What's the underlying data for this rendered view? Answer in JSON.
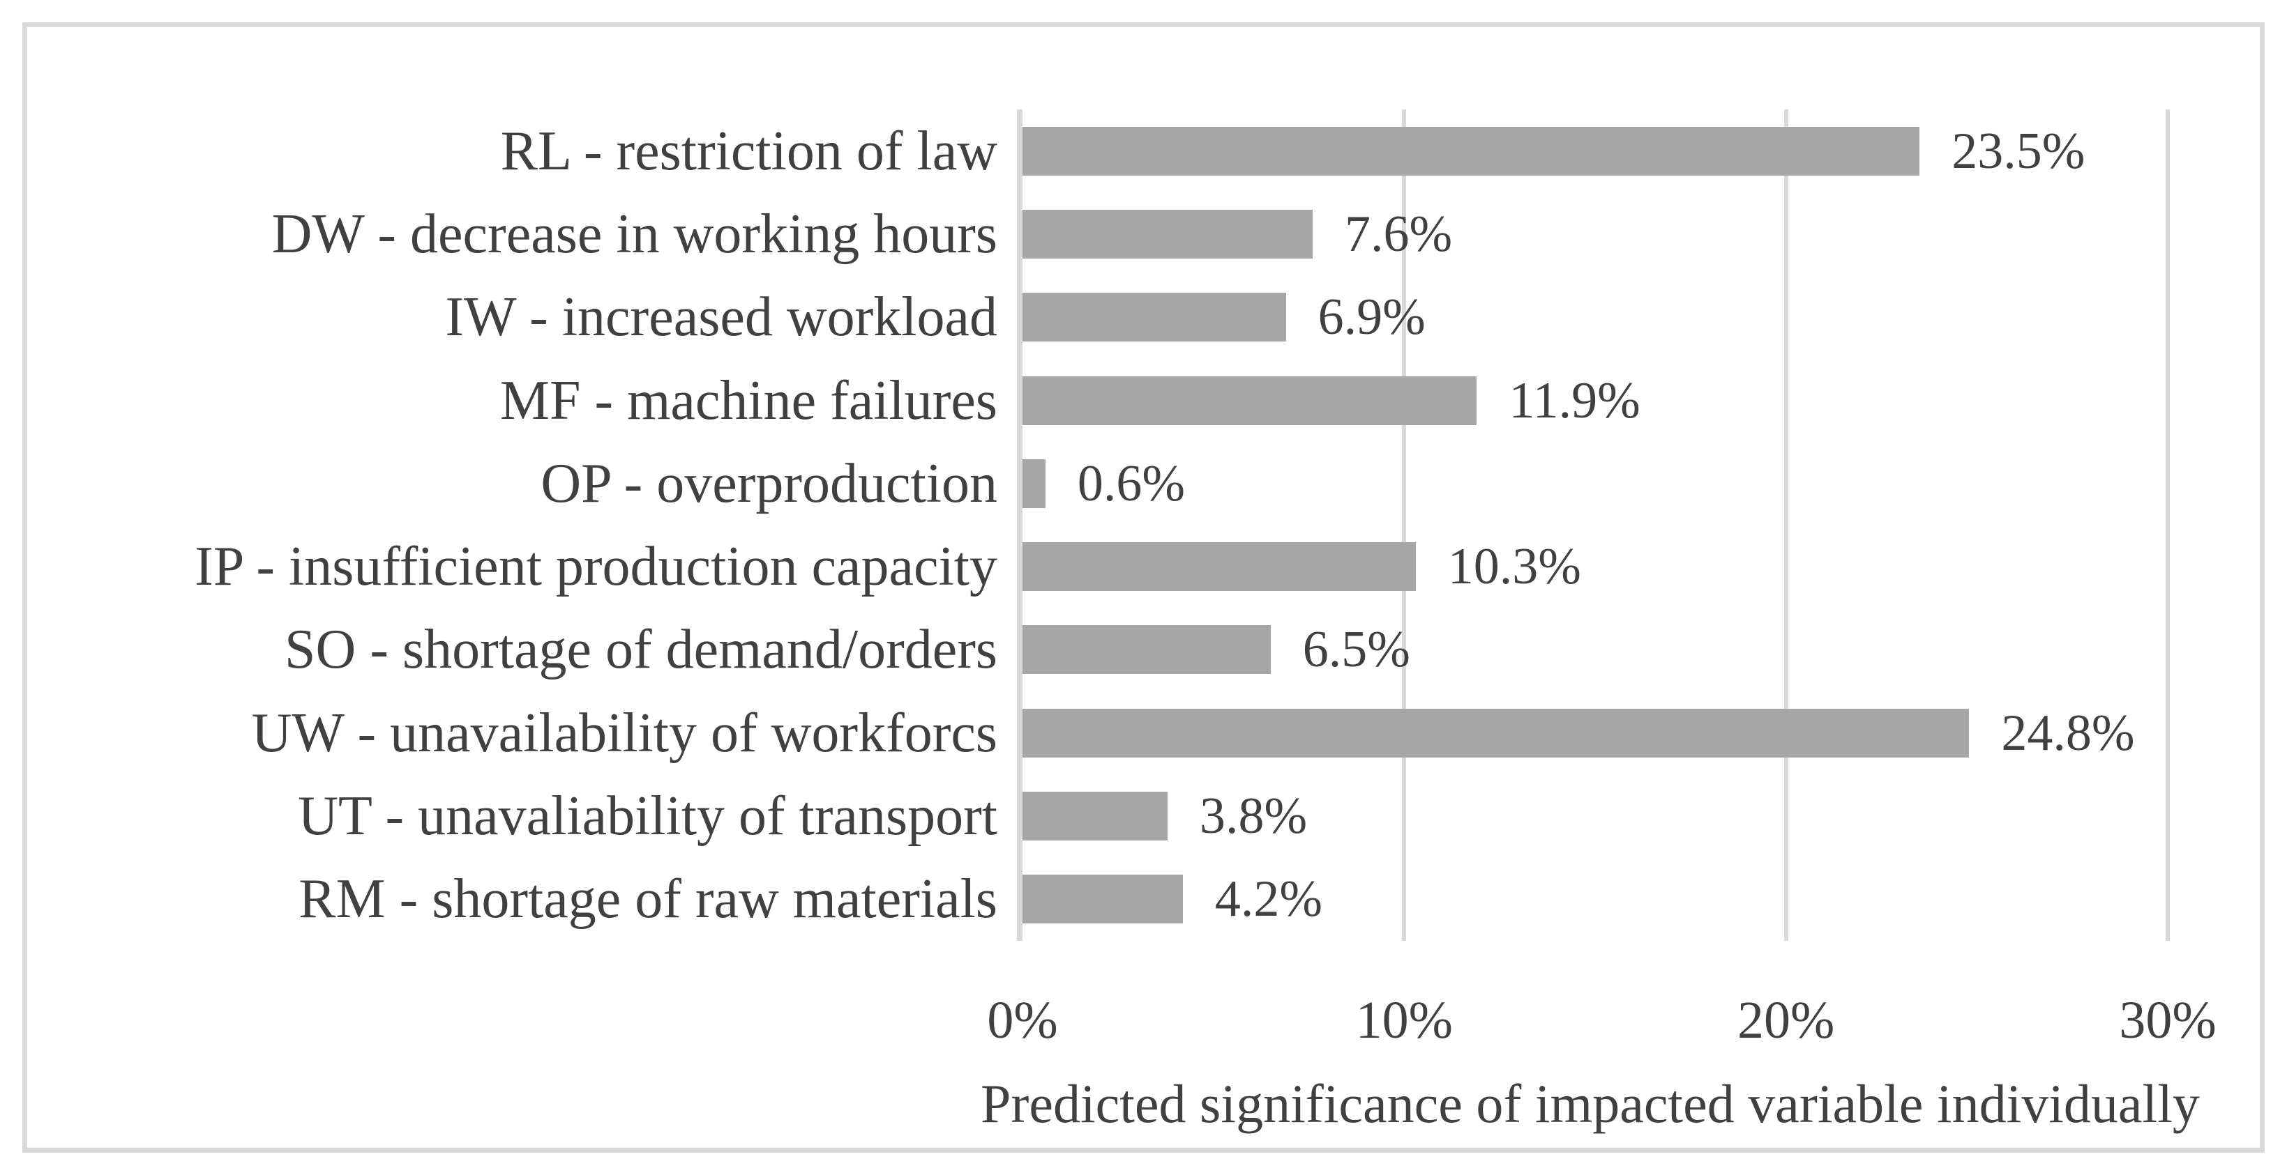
{
  "figure": {
    "background": "#ffffff",
    "border_color": "#d9d9d9",
    "text_color": "#404040"
  },
  "chart_data": {
    "type": "bar",
    "orientation": "horizontal",
    "title": "",
    "xlabel": "Predicted significance of impacted variable individually",
    "ylabel": "",
    "categories": [
      "RL - restriction of law",
      "DW - decrease in working hours",
      "IW - increased workload",
      "MF - machine failures",
      "OP - overproduction",
      "IP - insufficient production capacity",
      "SO - shortage of demand/orders",
      "UW - unavailability of workforcs",
      "UT - unavaliability of transport",
      "RM - shortage of raw materials"
    ],
    "values": [
      23.5,
      7.6,
      6.9,
      11.9,
      0.6,
      10.3,
      6.5,
      24.8,
      3.8,
      4.2
    ],
    "value_labels": [
      "23.5%",
      "7.6%",
      "6.9%",
      "11.9%",
      "0.6%",
      "10.3%",
      "6.5%",
      "24.8%",
      "3.8%",
      "4.2%"
    ],
    "x_ticks": [
      "0%",
      "10%",
      "20%",
      "30%"
    ],
    "x_tick_values": [
      0,
      10,
      20,
      30
    ],
    "xlim": [
      0,
      30
    ],
    "grid": true,
    "legend": false,
    "bar_color": "#a6a6a6",
    "gridline_color": "#d9d9d9"
  }
}
